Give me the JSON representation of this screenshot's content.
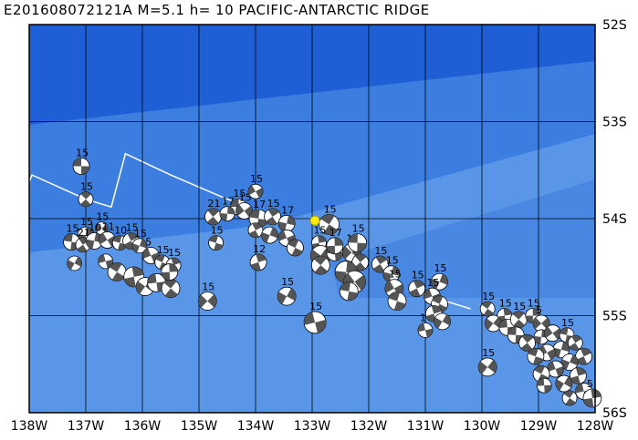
{
  "header": {
    "event_id": "E201608072121A",
    "magnitude": "M=5.1",
    "depth": "h= 10",
    "region": "PACIFIC-ANTARCTIC RIDGE"
  },
  "axes": {
    "lon_labels": [
      "138W",
      "137W",
      "136W",
      "135W",
      "134W",
      "133W",
      "132W",
      "131W",
      "130W",
      "129W",
      "128W"
    ],
    "lat_labels": [
      "52S",
      "53S",
      "54S",
      "55S",
      "56S"
    ],
    "lon_range": [
      -138,
      -128
    ],
    "lat_range": [
      -52,
      -56
    ]
  },
  "colors": {
    "ocean_deep": "#1e5fd6",
    "ocean_mid": "#3c7ee0",
    "ocean_shallow": "#5a96e8",
    "grid": "#000000",
    "ridge_line": "#ffffff",
    "epicenter": "#ffee00",
    "beachball_dark": "#555555",
    "beachball_light": "#ffffff"
  },
  "epicenter": {
    "lon": -132.95,
    "lat": -54.02
  },
  "ridge": [
    [
      -138.0,
      -53.62
    ],
    [
      -137.95,
      -53.55
    ],
    [
      -137.0,
      -53.8
    ],
    [
      -136.55,
      -53.88
    ],
    [
      -136.3,
      -53.33
    ],
    [
      -135.5,
      -53.55
    ],
    [
      -134.5,
      -53.8
    ],
    [
      -134.2,
      -53.85
    ]
  ],
  "ridge2": [
    [
      -131.2,
      -54.75
    ],
    [
      -130.2,
      -54.93
    ]
  ],
  "mechanisms": [
    {
      "lon": -137.08,
      "lat": -53.46,
      "r": 9,
      "label": "15"
    },
    {
      "lon": -137.0,
      "lat": -53.8,
      "r": 8,
      "label": "15"
    },
    {
      "lon": -137.0,
      "lat": -54.17,
      "r": 9,
      "label": "15"
    },
    {
      "lon": -136.72,
      "lat": -54.1,
      "r": 7,
      "label": "15"
    },
    {
      "lon": -137.25,
      "lat": -54.24,
      "r": 9,
      "label": "15"
    },
    {
      "lon": -137.05,
      "lat": -54.27,
      "r": 8,
      "label": "21"
    },
    {
      "lon": -136.85,
      "lat": -54.23,
      "r": 9,
      "label": "10"
    },
    {
      "lon": -136.62,
      "lat": -54.22,
      "r": 9,
      "label": "11"
    },
    {
      "lon": -136.4,
      "lat": -54.25,
      "r": 8,
      "label": "10"
    },
    {
      "lon": -136.2,
      "lat": -54.23,
      "r": 9,
      "label": "15"
    },
    {
      "lon": -136.05,
      "lat": -54.28,
      "r": 8,
      "label": "15"
    },
    {
      "lon": -135.85,
      "lat": -54.38,
      "r": 9,
      "label": "5"
    },
    {
      "lon": -135.65,
      "lat": -54.45,
      "r": 8,
      "label": "15"
    },
    {
      "lon": -135.45,
      "lat": -54.48,
      "r": 8,
      "label": "15"
    },
    {
      "lon": -137.2,
      "lat": -54.46,
      "r": 8,
      "label": ""
    },
    {
      "lon": -136.65,
      "lat": -54.44,
      "r": 8,
      "label": ""
    },
    {
      "lon": -136.45,
      "lat": -54.55,
      "r": 10,
      "label": ""
    },
    {
      "lon": -136.15,
      "lat": -54.6,
      "r": 11,
      "label": ""
    },
    {
      "lon": -135.95,
      "lat": -54.7,
      "r": 10,
      "label": ""
    },
    {
      "lon": -135.75,
      "lat": -54.66,
      "r": 10,
      "label": ""
    },
    {
      "lon": -135.5,
      "lat": -54.72,
      "r": 10,
      "label": ""
    },
    {
      "lon": -135.52,
      "lat": -54.55,
      "r": 9,
      "label": ""
    },
    {
      "lon": -134.85,
      "lat": -54.85,
      "r": 10,
      "label": "15"
    },
    {
      "lon": -134.3,
      "lat": -53.88,
      "r": 9,
      "label": "15"
    },
    {
      "lon": -134.75,
      "lat": -53.98,
      "r": 9,
      "label": "21"
    },
    {
      "lon": -134.5,
      "lat": -53.95,
      "r": 8,
      "label": "17"
    },
    {
      "lon": -134.2,
      "lat": -53.92,
      "r": 9,
      "label": "15"
    },
    {
      "lon": -133.95,
      "lat": -54.0,
      "r": 10,
      "label": "17"
    },
    {
      "lon": -133.7,
      "lat": -53.98,
      "r": 9,
      "label": "15"
    },
    {
      "lon": -133.45,
      "lat": -54.05,
      "r": 9,
      "label": "17"
    },
    {
      "lon": -134.0,
      "lat": -53.72,
      "r": 8,
      "label": "15"
    },
    {
      "lon": -134.7,
      "lat": -54.25,
      "r": 8,
      "label": "15"
    },
    {
      "lon": -134.0,
      "lat": -54.12,
      "r": 8,
      "label": ""
    },
    {
      "lon": -133.75,
      "lat": -54.17,
      "r": 9,
      "label": ""
    },
    {
      "lon": -133.45,
      "lat": -54.2,
      "r": 9,
      "label": ""
    },
    {
      "lon": -133.3,
      "lat": -54.3,
      "r": 9,
      "label": ""
    },
    {
      "lon": -133.95,
      "lat": -54.45,
      "r": 9,
      "label": "12"
    },
    {
      "lon": -133.45,
      "lat": -54.8,
      "r": 10,
      "label": "15"
    },
    {
      "lon": -132.95,
      "lat": -55.07,
      "r": 12,
      "label": "15"
    },
    {
      "lon": -132.7,
      "lat": -54.06,
      "r": 11,
      "label": "15"
    },
    {
      "lon": -132.88,
      "lat": -54.25,
      "r": 8,
      "label": "15"
    },
    {
      "lon": -132.85,
      "lat": -54.38,
      "r": 11,
      "label": ""
    },
    {
      "lon": -132.6,
      "lat": -54.35,
      "r": 9,
      "label": ""
    },
    {
      "lon": -132.85,
      "lat": -54.48,
      "r": 10,
      "label": ""
    },
    {
      "lon": -132.6,
      "lat": -54.28,
      "r": 9,
      "label": "17"
    },
    {
      "lon": -132.3,
      "lat": -54.35,
      "r": 10,
      "label": "16"
    },
    {
      "lon": -132.2,
      "lat": -54.25,
      "r": 10,
      "label": "15"
    },
    {
      "lon": -132.15,
      "lat": -54.45,
      "r": 9,
      "label": ""
    },
    {
      "lon": -132.4,
      "lat": -54.55,
      "r": 12,
      "label": ""
    },
    {
      "lon": -132.25,
      "lat": -54.65,
      "r": 12,
      "label": ""
    },
    {
      "lon": -132.35,
      "lat": -54.75,
      "r": 10,
      "label": ""
    },
    {
      "lon": -131.8,
      "lat": -54.47,
      "r": 9,
      "label": "15"
    },
    {
      "lon": -131.6,
      "lat": -54.57,
      "r": 9,
      "label": "15"
    },
    {
      "lon": -131.55,
      "lat": -54.72,
      "r": 10,
      "label": "15"
    },
    {
      "lon": -131.5,
      "lat": -54.85,
      "r": 10,
      "label": ""
    },
    {
      "lon": -131.15,
      "lat": -54.72,
      "r": 9,
      "label": "15"
    },
    {
      "lon": -130.75,
      "lat": -54.65,
      "r": 9,
      "label": "15"
    },
    {
      "lon": -130.88,
      "lat": -54.8,
      "r": 9,
      "label": "15"
    },
    {
      "lon": -130.75,
      "lat": -54.88,
      "r": 9,
      "label": ""
    },
    {
      "lon": -130.85,
      "lat": -54.98,
      "r": 9,
      "label": ""
    },
    {
      "lon": -130.7,
      "lat": -55.06,
      "r": 9,
      "label": ""
    },
    {
      "lon": -131.0,
      "lat": -55.15,
      "r": 8,
      "label": "1"
    },
    {
      "lon": -129.9,
      "lat": -54.93,
      "r": 8,
      "label": "15"
    },
    {
      "lon": -129.6,
      "lat": -55.0,
      "r": 8,
      "label": "15"
    },
    {
      "lon": -129.8,
      "lat": -55.08,
      "r": 9,
      "label": ""
    },
    {
      "lon": -129.55,
      "lat": -55.12,
      "r": 9,
      "label": ""
    },
    {
      "lon": -129.35,
      "lat": -55.04,
      "r": 9,
      "label": "15"
    },
    {
      "lon": -129.1,
      "lat": -55.0,
      "r": 8,
      "label": "15"
    },
    {
      "lon": -128.95,
      "lat": -55.08,
      "r": 9,
      "label": "5"
    },
    {
      "lon": -129.4,
      "lat": -55.2,
      "r": 9,
      "label": ""
    },
    {
      "lon": -129.2,
      "lat": -55.28,
      "r": 9,
      "label": ""
    },
    {
      "lon": -128.95,
      "lat": -55.22,
      "r": 8,
      "label": ""
    },
    {
      "lon": -128.75,
      "lat": -55.18,
      "r": 9,
      "label": ""
    },
    {
      "lon": -128.5,
      "lat": -55.2,
      "r": 8,
      "label": "15"
    },
    {
      "lon": -128.35,
      "lat": -55.28,
      "r": 8,
      "label": ""
    },
    {
      "lon": -128.6,
      "lat": -55.35,
      "r": 9,
      "label": ""
    },
    {
      "lon": -128.85,
      "lat": -55.38,
      "r": 9,
      "label": ""
    },
    {
      "lon": -129.05,
      "lat": -55.42,
      "r": 9,
      "label": ""
    },
    {
      "lon": -128.2,
      "lat": -55.42,
      "r": 9,
      "label": ""
    },
    {
      "lon": -128.45,
      "lat": -55.48,
      "r": 9,
      "label": ""
    },
    {
      "lon": -128.7,
      "lat": -55.55,
      "r": 9,
      "label": ""
    },
    {
      "lon": -128.95,
      "lat": -55.6,
      "r": 9,
      "label": ""
    },
    {
      "lon": -128.3,
      "lat": -55.62,
      "r": 9,
      "label": ""
    },
    {
      "lon": -128.55,
      "lat": -55.7,
      "r": 9,
      "label": ""
    },
    {
      "lon": -128.2,
      "lat": -55.78,
      "r": 9,
      "label": ""
    },
    {
      "lon": -128.45,
      "lat": -55.85,
      "r": 8,
      "label": ""
    },
    {
      "lon": -128.05,
      "lat": -55.85,
      "r": 10,
      "label": "5"
    },
    {
      "lon": -129.9,
      "lat": -55.53,
      "r": 10,
      "label": "15"
    },
    {
      "lon": -128.9,
      "lat": -55.72,
      "r": 8,
      "label": ""
    }
  ]
}
